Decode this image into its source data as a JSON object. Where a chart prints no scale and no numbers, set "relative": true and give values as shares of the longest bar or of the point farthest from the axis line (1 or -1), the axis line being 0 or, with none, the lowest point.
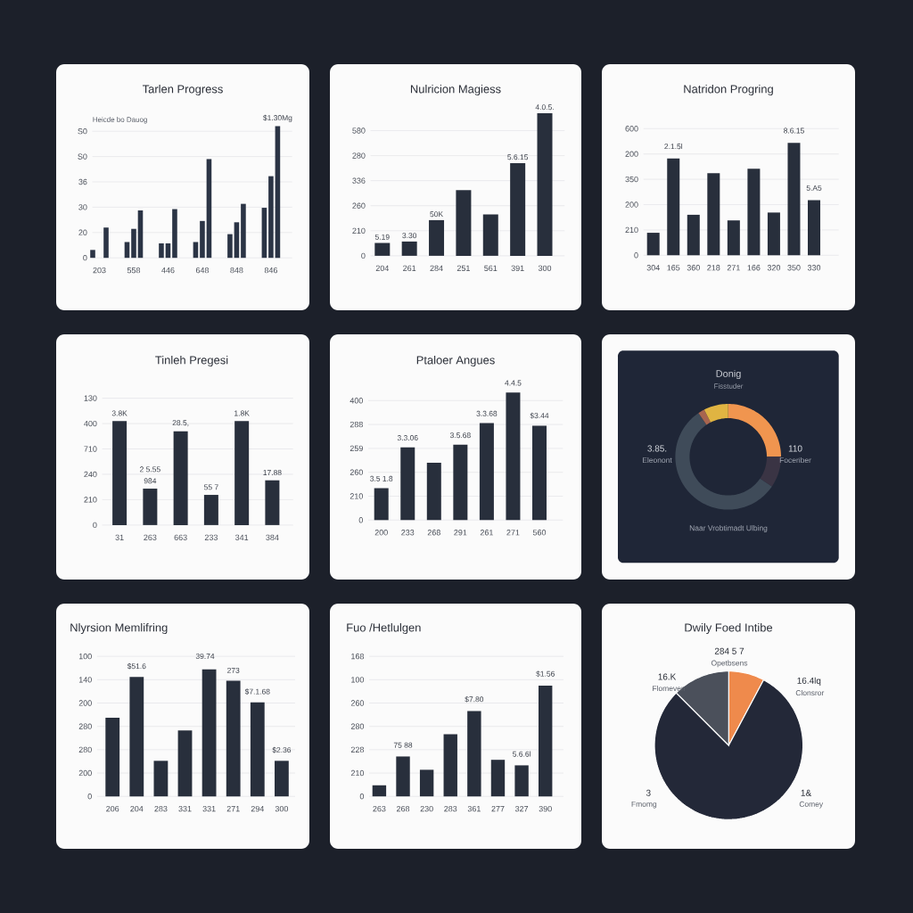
{
  "chart_data": [
    {
      "type": "bar",
      "relative": true,
      "title": "Tarlen Progress",
      "subtitle": "Heicde bo Dauog",
      "categories": [
        "203",
        "558",
        "446",
        "648",
        "848",
        "846"
      ],
      "series": [
        {
          "color": "#2b3445",
          "values": [
            0.06,
            0.12,
            0.11,
            0.12,
            0.18,
            0.38
          ]
        },
        {
          "color": "#2b3445",
          "values": [
            null,
            0.22,
            0.11,
            0.28,
            0.27,
            0.62
          ]
        },
        {
          "color": "#2b3445",
          "values": [
            0.23,
            0.36,
            0.37,
            0.75,
            0.41,
            1
          ]
        }
      ],
      "grid": "y",
      "annotations": [
        "0",
        "20",
        "30",
        "36",
        "S0",
        "S0",
        {
          "text": "$1.30Mg",
          "x": "846",
          "y": 1
        }
      ]
    },
    {
      "type": "bar",
      "relative": true,
      "title": "Nulricion Magiess",
      "categories": [
        "204",
        "261",
        "284",
        "251",
        "561",
        "391",
        "300"
      ],
      "values": [
        0.09,
        0.1,
        0.25,
        0.46,
        0.29,
        0.65,
        1
      ],
      "color": "#282f3c",
      "grid": "y",
      "annotations": [
        "0",
        "210",
        "260",
        "336",
        "280",
        "580",
        {
          "text": "5.19",
          "x": "204",
          "y": 0.09
        },
        {
          "text": "3.30",
          "x": "261",
          "y": 0.1
        },
        {
          "text": "50K",
          "x": "284",
          "y": 0.25
        },
        {
          "text": "5.6.15",
          "x": "391",
          "y": 0.65
        },
        {
          "text": "4.0.5.",
          "x": "300",
          "y": 1
        }
      ]
    },
    {
      "type": "bar",
      "relative": true,
      "title": "Natridon Progring",
      "categories": [
        "304",
        "165",
        "360",
        "218",
        "271",
        "166",
        "320",
        "350",
        "330"
      ],
      "values": [
        0.2,
        0.86,
        0.36,
        0.73,
        0.31,
        0.77,
        0.38,
        1,
        0.49
      ],
      "color": "#282f3c",
      "grid": "y",
      "annotations": [
        "0",
        "210",
        "200",
        "350",
        "200",
        "600",
        {
          "text": "2.1.5l",
          "x": "165",
          "y": 0.86
        },
        {
          "text": "8.6.15",
          "x": "350",
          "y": 1
        },
        {
          "text": "5.A5",
          "x": "330",
          "y": 0.49
        }
      ]
    },
    {
      "type": "bar",
      "relative": true,
      "title": "Tinleh Pregesi",
      "categories": [
        "31",
        "263",
        "663",
        "233",
        "341",
        "384"
      ],
      "values": [
        1,
        0.35,
        0.9,
        0.29,
        1,
        0.43
      ],
      "color": "#282f3c",
      "grid": "y",
      "annotations": [
        "0",
        "210",
        "240",
        "710",
        "400",
        "130",
        {
          "text": "3.8K",
          "x": "31",
          "y": 1
        },
        {
          "text": "984",
          "x": "263",
          "y": 0.35
        },
        {
          "text": "2 5.55",
          "x": "263",
          "y": 0.35
        },
        {
          "text": "28.5,",
          "x": "663",
          "y": 0.9
        },
        {
          "text": "55 7",
          "x": "233",
          "y": 0.29
        },
        {
          "text": "1.8K",
          "x": "341",
          "y": 1
        },
        {
          "text": "17.88",
          "x": "384",
          "y": 0.43
        }
      ]
    },
    {
      "type": "bar",
      "relative": true,
      "title": "Ptaloer Angues",
      "categories": [
        "200",
        "233",
        "268",
        "291",
        "261",
        "271",
        "560"
      ],
      "values": [
        0.25,
        0.57,
        0.45,
        0.59,
        0.76,
        1,
        0.74
      ],
      "color": "#282f3c",
      "grid": "y",
      "annotations": [
        "0",
        "210",
        "260",
        "259",
        "288",
        "400",
        {
          "text": "3.5 1.8",
          "x": "200",
          "y": 0.25
        },
        {
          "text": "3.3.06",
          "x": "233",
          "y": 0.57
        },
        {
          "text": "3.5.68",
          "x": "291",
          "y": 0.59
        },
        {
          "text": "3.3.68",
          "x": "261",
          "y": 0.76
        },
        {
          "text": "4.4.5",
          "x": "271",
          "y": 1
        },
        {
          "text": "$3.44",
          "x": "560",
          "y": 0.74
        }
      ]
    },
    {
      "type": "donut",
      "title": "Donig",
      "subtitle": "Fisstuder",
      "categories": [
        null,
        "Foceriber",
        "Eleonont",
        null,
        null
      ],
      "values": [
        25,
        9.5,
        56,
        2,
        7.5
      ],
      "colors": [
        "#f0954f",
        "#3a3444",
        "#3f4b59",
        "#a8654f",
        "#e0b442"
      ],
      "annotations": [
        "110",
        "3.85.",
        "Naar Vrobtimadt Ulbing"
      ]
    },
    {
      "type": "bar",
      "relative": true,
      "title": "Nlyrsion Memlifring",
      "categories": [
        "206",
        "204",
        "283",
        "331",
        "331",
        "271",
        "294",
        "300"
      ],
      "values": [
        0.62,
        0.94,
        0.28,
        0.52,
        1,
        0.91,
        0.74,
        0.28
      ],
      "color": "#282f3c",
      "grid": "y",
      "annotations": [
        "0",
        "200",
        "280",
        "280",
        "200",
        "140",
        "100",
        "39.74",
        {
          "text": "$51.6",
          "x": "204",
          "y": 0.94
        },
        {
          "text": "273",
          "x": "271",
          "y": 0.91
        },
        {
          "text": "$7.1.68",
          "x": "294",
          "y": 0.74
        },
        {
          "text": "$2.36",
          "x": "300",
          "y": 0.28
        }
      ]
    },
    {
      "type": "bar",
      "relative": true,
      "title": "Fuo /Hetlulgen",
      "categories": [
        "263",
        "268",
        "230",
        "283",
        "361",
        "277",
        "327",
        "390"
      ],
      "values": [
        0.1,
        0.36,
        0.24,
        0.56,
        0.77,
        0.33,
        0.28,
        1
      ],
      "color": "#282f3c",
      "grid": "y",
      "annotations": [
        "0",
        "210",
        "228",
        "280",
        "260",
        "100",
        "168",
        {
          "text": "75 88",
          "x": "268",
          "y": 0.36
        },
        {
          "text": "$7.80",
          "x": "361",
          "y": 0.77
        },
        {
          "text": "5.6.6l",
          "x": "327",
          "y": 0.28
        },
        {
          "text": "$1.56",
          "x": "390",
          "y": 1
        }
      ]
    },
    {
      "type": "pie",
      "title": "Dwily Foed Intibe",
      "categories": [
        "Opetbsens",
        "Comey",
        "Flomeven"
      ],
      "values": [
        7.8,
        79.7,
        12.5
      ],
      "colors": [
        "#ef8a4c",
        "#232838",
        "#4b505b"
      ],
      "annotations": [
        "284 5 7",
        "1&",
        "16.K",
        "16.4lq",
        "Clonsror",
        "3",
        "Fmomg"
      ]
    }
  ]
}
